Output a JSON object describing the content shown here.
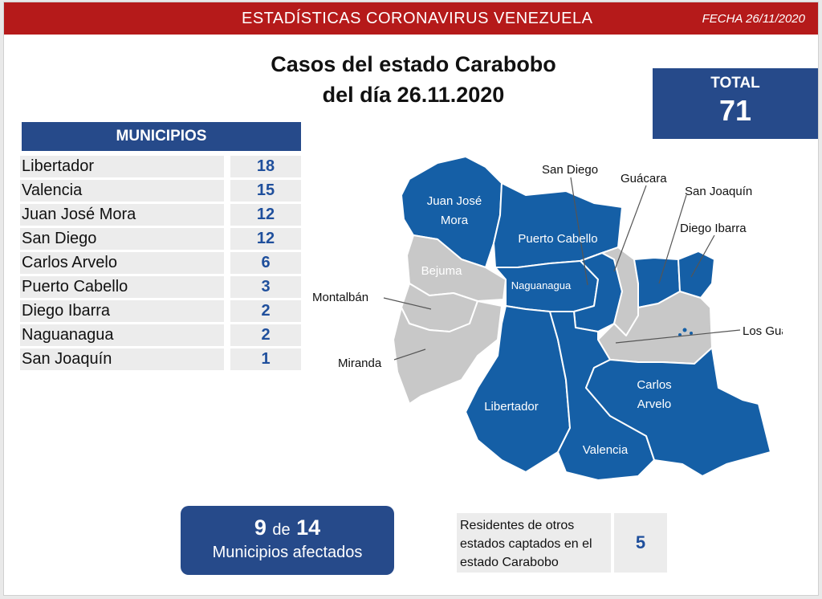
{
  "header": {
    "title": "ESTADÍSTICAS CORONAVIRUS VENEZUELA",
    "date": "FECHA 26/11/2020"
  },
  "headline": {
    "line1": "Casos del estado Carabobo",
    "line2": "del día 26.11.2020"
  },
  "total": {
    "label": "TOTAL",
    "value": "71"
  },
  "municipios": {
    "header": "MUNICIPIOS",
    "rows": [
      {
        "name": "Libertador",
        "value": "18"
      },
      {
        "name": "Valencia",
        "value": "15"
      },
      {
        "name": "Juan José Mora",
        "value": "12"
      },
      {
        "name": "San Diego",
        "value": "12"
      },
      {
        "name": "Carlos Arvelo",
        "value": "6"
      },
      {
        "name": "Puerto Cabello",
        "value": "3"
      },
      {
        "name": "Diego Ibarra",
        "value": "2"
      },
      {
        "name": "Naguanagua",
        "value": "2"
      },
      {
        "name": "San Joaquín",
        "value": "1"
      }
    ]
  },
  "map": {
    "labels": {
      "juan_jose_mora_1": "Juan José",
      "juan_jose_mora_2": "Mora",
      "puerto_cabello": "Puerto Cabello",
      "bejuma": "Bejuma",
      "naguanagua": "Naguanagua",
      "libertador": "Libertador",
      "valencia": "Valencia",
      "carlos_arvelo_1": "Carlos",
      "carlos_arvelo_2": "Arvelo"
    },
    "callouts": {
      "san_diego": "San Diego",
      "guacara": "Guácara",
      "san_joaquin": "San Joaquín",
      "diego_ibarra": "Diego Ibarra",
      "montalban": "Montalbán",
      "miranda": "Miranda",
      "los_guayos": "Los Guayos"
    },
    "colors": {
      "affected": "#155fa6",
      "unaffected": "#c8c8c8",
      "border": "#ffffff"
    }
  },
  "affected": {
    "count": "9",
    "connector": "de",
    "total": "14",
    "label": "Municipios afectados"
  },
  "residents": {
    "label": "Residentes de otros estados captados en el estado Carabobo",
    "line1": "Residentes de otros",
    "line2": "estados captados en el",
    "line3": "estado Carabobo",
    "value": "5"
  },
  "colors": {
    "header_red": "#b51a1a",
    "navy": "#264a8a",
    "number_blue": "#1f4f9c",
    "cell_gray": "#ececec"
  }
}
